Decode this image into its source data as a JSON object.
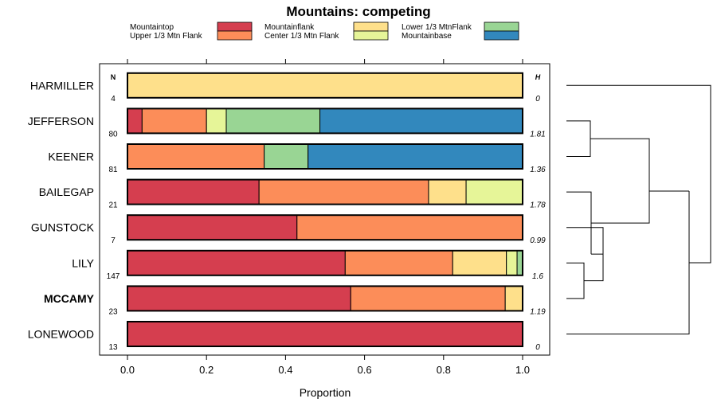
{
  "chart_data": {
    "type": "bar",
    "orientation": "horizontal",
    "stacked": true,
    "title": "Mountains: competing",
    "xlabel": "Proportion",
    "xlim": [
      0,
      1
    ],
    "xticks": [
      "0.0",
      "0.2",
      "0.4",
      "0.6",
      "0.8",
      "1.0"
    ],
    "count_header": "N",
    "h_header": "H",
    "highlight_category": "MCCAMY",
    "categories": [
      "HARMILLER",
      "JEFFERSON",
      "KEENER",
      "BAILEGAP",
      "GUNSTOCK",
      "LILY",
      "MCCAMY",
      "LONEWOOD"
    ],
    "counts": [
      "4",
      "80",
      "81",
      "21",
      "7",
      "147",
      "23",
      "13"
    ],
    "h_values": [
      "0",
      "1.81",
      "1.36",
      "1.78",
      "0.99",
      "1.6",
      "1.19",
      "0"
    ],
    "series": [
      {
        "name": "Mountaintop",
        "color": "#d53e4f",
        "values": [
          0,
          0.037,
          0,
          0.333,
          0.429,
          0.551,
          0.565,
          1
        ]
      },
      {
        "name": "Upper 1/3 Mtn Flank",
        "color": "#fc8d59",
        "values": [
          0,
          0.163,
          0.346,
          0.429,
          0.571,
          0.272,
          0.391,
          0
        ]
      },
      {
        "name": "Mountainflank",
        "color": "#fee08b",
        "values": [
          1,
          0,
          0,
          0.095,
          0,
          0.136,
          0.044,
          0
        ]
      },
      {
        "name": "Center 1/3 Mtn Flank",
        "color": "#e6f598",
        "values": [
          0,
          0.05,
          0,
          0.143,
          0,
          0.027,
          0,
          0
        ]
      },
      {
        "name": "Lower 1/3 MtnFlank",
        "color": "#99d594",
        "values": [
          0,
          0.237,
          0.111,
          0,
          0,
          0.014,
          0,
          0
        ]
      },
      {
        "name": "Mountainbase",
        "color": "#3288bd",
        "values": [
          0,
          0.513,
          0.543,
          0,
          0,
          0,
          0,
          0
        ]
      }
    ],
    "dendrogram": "hierarchical clustering of categories (right side)"
  }
}
